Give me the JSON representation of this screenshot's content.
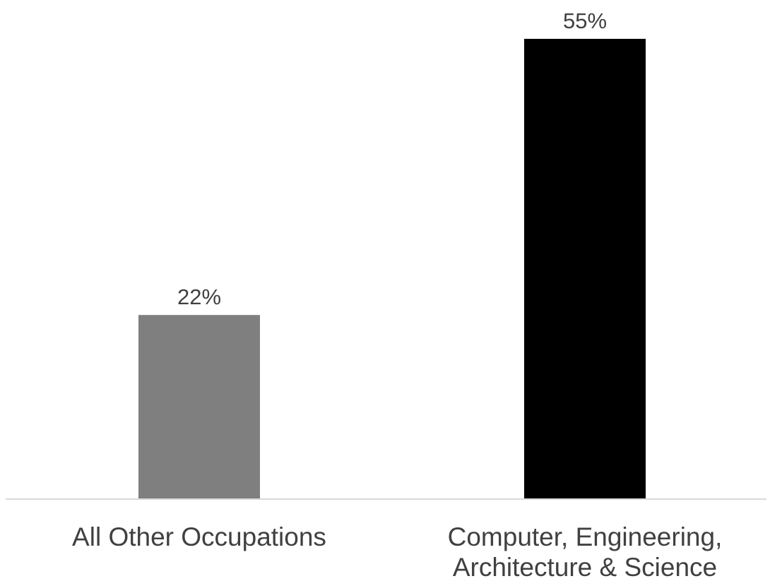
{
  "chart_data": {
    "type": "bar",
    "categories": [
      [
        "All Other Occupations"
      ],
      [
        "Computer, Engineering,",
        "Architecture & Science"
      ]
    ],
    "values": [
      22,
      55
    ],
    "data_labels": [
      "22%",
      "55%"
    ],
    "colors": [
      "#7f7f7f",
      "#000000"
    ],
    "ylim": [
      0,
      55
    ],
    "grid": false,
    "legend": "none",
    "title": "",
    "xlabel": "",
    "ylabel": ""
  }
}
